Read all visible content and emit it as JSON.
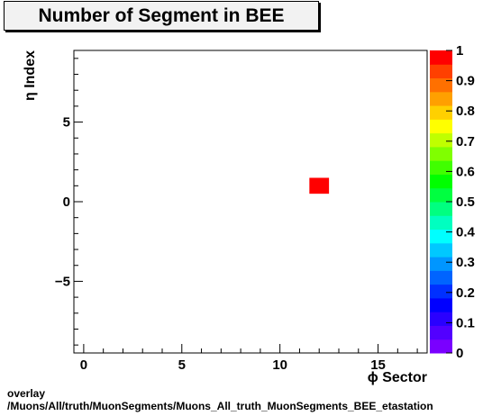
{
  "chart_data": {
    "type": "heatmap",
    "title": "Number of Segment in BEE",
    "xlabel": "ϕ Sector",
    "ylabel": "η Index",
    "xlim": [
      -0.5,
      17.5
    ],
    "ylim": [
      -9.5,
      9.5
    ],
    "x_ticks": [
      0,
      5,
      10,
      15
    ],
    "y_ticks": [
      -5,
      0,
      5
    ],
    "x_tick_labels": [
      "0",
      "5",
      "10",
      "15"
    ],
    "y_tick_labels": [
      "−5",
      "0",
      "5"
    ],
    "bins": [
      {
        "x": 12,
        "y": 1,
        "value": 1
      }
    ],
    "colorbar": {
      "range": [
        0,
        1
      ],
      "ticks": [
        0,
        0.1,
        0.2,
        0.3,
        0.4,
        0.5,
        0.6,
        0.7,
        0.8,
        0.9,
        1
      ],
      "tick_labels": [
        "0",
        "0.1",
        "0.2",
        "0.3",
        "0.4",
        "0.5",
        "0.6",
        "0.7",
        "0.8",
        "0.9",
        "1"
      ],
      "colors": [
        "#7a00ff",
        "#5200ff",
        "#2a00ff",
        "#0000ff",
        "#0030ff",
        "#0064ff",
        "#0096ff",
        "#00c8ff",
        "#00ffff",
        "#00ffc0",
        "#00ff80",
        "#00ff40",
        "#00ff00",
        "#40ff00",
        "#80ff00",
        "#c0ff00",
        "#ffff00",
        "#ffd000",
        "#ffa000",
        "#ff7000",
        "#ff4000",
        "#ff0000"
      ]
    },
    "grid": false
  },
  "footer": {
    "line1": "overlay",
    "line2": "/Muons/All/truth/MuonSegments/Muons_All_truth_MuonSegments_BEE_etastation"
  }
}
